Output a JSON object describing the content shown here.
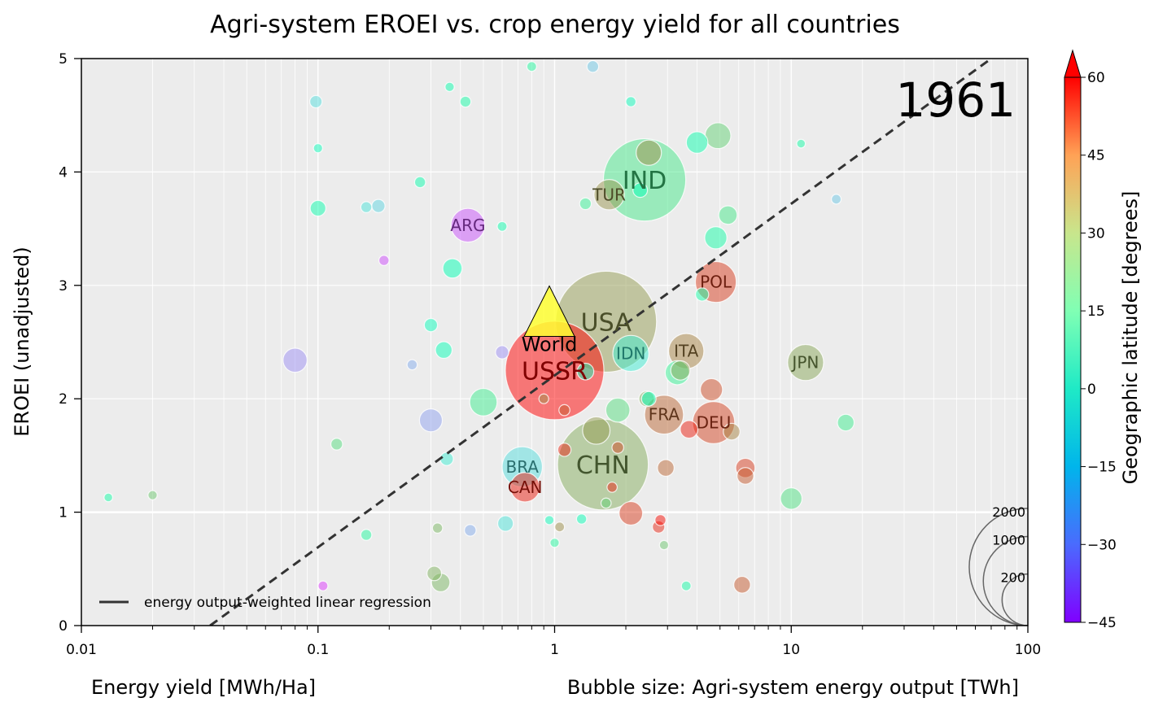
{
  "chart_data": {
    "type": "scatter",
    "title": "Agri-system EROEI vs. crop energy yield for all countries",
    "xlabel": "Energy yield [MWh/Ha]",
    "ylabel": "EROEI (unadjusted)",
    "size_label": "Bubble size: Agri-system energy output [TWh]",
    "year": "1961",
    "x_scale": "log",
    "xlim": [
      0.01,
      100
    ],
    "ylim": [
      0,
      5
    ],
    "x_ticks": [
      "0.01",
      "0.1",
      "1",
      "10",
      "100"
    ],
    "x_tick_values": [
      0.01,
      0.1,
      1,
      10,
      100
    ],
    "y_ticks": [
      "0",
      "1",
      "2",
      "3",
      "4",
      "5"
    ],
    "y_tick_values": [
      0,
      1,
      2,
      3,
      4,
      5
    ],
    "grid": true,
    "background": "#ececec",
    "regression": {
      "label": "energy output-weighted linear regression",
      "points": [
        [
          0.035,
          0
        ],
        [
          70,
          5
        ]
      ]
    },
    "legend_placement": "lower-left",
    "colorbar": {
      "label": "Geographic latitude [degrees]",
      "ticks": [
        "60",
        "45",
        "30",
        "15",
        "0",
        "−15",
        "−30",
        "−45"
      ],
      "tick_values": [
        60,
        45,
        30,
        15,
        0,
        -15,
        -30,
        -45
      ],
      "range": [
        -45,
        60
      ],
      "extend": "max",
      "colormap": "rainbow"
    },
    "size_key": {
      "values": [
        2000,
        1000,
        200
      ],
      "labels": [
        "2000",
        "1000",
        "200"
      ]
    },
    "world": {
      "label": "World",
      "x": 0.95,
      "y": 2.55,
      "marker": "triangle",
      "color": "#ffff33"
    },
    "points": [
      {
        "label": "USSR",
        "x": 1.0,
        "y": 2.25,
        "size": 1900,
        "lat": 60
      },
      {
        "label": "USA",
        "x": 1.65,
        "y": 2.68,
        "size": 2000,
        "lat": 38
      },
      {
        "label": "IND",
        "x": 2.4,
        "y": 3.93,
        "size": 1300,
        "lat": 22
      },
      {
        "label": "CHN",
        "x": 1.6,
        "y": 1.42,
        "size": 1600,
        "lat": 35
      },
      {
        "label": "TUR",
        "x": 1.7,
        "y": 3.8,
        "size": 140,
        "lat": 39
      },
      {
        "label": "ARG",
        "x": 0.43,
        "y": 3.53,
        "size": 180,
        "lat": -34
      },
      {
        "label": "POL",
        "x": 4.8,
        "y": 3.03,
        "size": 280,
        "lat": 52
      },
      {
        "label": "IDN",
        "x": 2.1,
        "y": 2.4,
        "size": 210,
        "lat": -5
      },
      {
        "label": "ITA",
        "x": 3.6,
        "y": 2.42,
        "size": 200,
        "lat": 42
      },
      {
        "label": "JPN",
        "x": 11.5,
        "y": 2.32,
        "size": 210,
        "lat": 36
      },
      {
        "label": "FRA",
        "x": 2.9,
        "y": 1.86,
        "size": 250,
        "lat": 46
      },
      {
        "label": "DEU",
        "x": 4.7,
        "y": 1.79,
        "size": 300,
        "lat": 51
      },
      {
        "label": "BRA",
        "x": 0.73,
        "y": 1.4,
        "size": 270,
        "lat": -10
      },
      {
        "label": "CAN",
        "x": 0.75,
        "y": 1.22,
        "size": 130,
        "lat": 56
      },
      {
        "x": 2.5,
        "y": 4.17,
        "size": 90,
        "lat": 40
      },
      {
        "x": 4.9,
        "y": 4.32,
        "size": 95,
        "lat": 28
      },
      {
        "x": 4.0,
        "y": 4.26,
        "size": 60,
        "lat": 10
      },
      {
        "x": 5.4,
        "y": 3.62,
        "size": 40,
        "lat": 22
      },
      {
        "x": 4.8,
        "y": 3.42,
        "size": 65,
        "lat": 12
      },
      {
        "x": 0.37,
        "y": 3.15,
        "size": 45,
        "lat": 8
      },
      {
        "x": 0.08,
        "y": 2.34,
        "size": 80,
        "lat": -25
      },
      {
        "x": 0.5,
        "y": 1.97,
        "size": 110,
        "lat": 20
      },
      {
        "x": 0.3,
        "y": 1.81,
        "size": 70,
        "lat": -22
      },
      {
        "x": 1.5,
        "y": 1.72,
        "size": 110,
        "lat": 38
      },
      {
        "x": 1.85,
        "y": 1.9,
        "size": 80,
        "lat": 25
      },
      {
        "x": 3.3,
        "y": 2.23,
        "size": 80,
        "lat": 18
      },
      {
        "x": 3.4,
        "y": 2.25,
        "size": 45,
        "lat": 36
      },
      {
        "x": 4.6,
        "y": 2.08,
        "size": 65,
        "lat": 50
      },
      {
        "x": 3.7,
        "y": 1.73,
        "size": 35,
        "lat": 56
      },
      {
        "x": 5.6,
        "y": 1.71,
        "size": 30,
        "lat": 42
      },
      {
        "x": 6.4,
        "y": 1.39,
        "size": 45,
        "lat": 52
      },
      {
        "x": 6.4,
        "y": 1.32,
        "size": 30,
        "lat": 48
      },
      {
        "x": 2.1,
        "y": 0.99,
        "size": 75,
        "lat": 52
      },
      {
        "x": 2.95,
        "y": 1.39,
        "size": 30,
        "lat": 46
      },
      {
        "x": 10.0,
        "y": 1.12,
        "size": 60,
        "lat": 24
      },
      {
        "x": 17.0,
        "y": 1.79,
        "size": 30,
        "lat": 20
      },
      {
        "x": 6.2,
        "y": 0.36,
        "size": 30,
        "lat": 48
      },
      {
        "x": 0.33,
        "y": 0.38,
        "size": 40,
        "lat": 33
      },
      {
        "x": 0.31,
        "y": 0.46,
        "size": 20,
        "lat": 34
      },
      {
        "x": 0.62,
        "y": 0.9,
        "size": 25,
        "lat": -8
      },
      {
        "x": 0.44,
        "y": 0.84,
        "size": 10,
        "lat": -20
      },
      {
        "x": 0.34,
        "y": 2.43,
        "size": 30,
        "lat": 6
      },
      {
        "x": 0.3,
        "y": 2.65,
        "size": 15,
        "lat": 5
      },
      {
        "x": 0.18,
        "y": 3.7,
        "size": 15,
        "lat": -12
      },
      {
        "x": 0.1,
        "y": 3.68,
        "size": 25,
        "lat": 10
      },
      {
        "x": 0.098,
        "y": 4.62,
        "size": 12,
        "lat": -10
      },
      {
        "x": 0.6,
        "y": 2.41,
        "size": 15,
        "lat": -25
      },
      {
        "x": 0.35,
        "y": 1.47,
        "size": 15,
        "lat": -5
      },
      {
        "x": 0.12,
        "y": 1.6,
        "size": 10,
        "lat": 25
      },
      {
        "x": 1.45,
        "y": 4.93,
        "size": 10,
        "lat": -15
      },
      {
        "x": 0.16,
        "y": 3.69,
        "size": 8,
        "lat": -8
      },
      {
        "x": 0.27,
        "y": 3.91,
        "size": 8,
        "lat": 10
      },
      {
        "x": 0.42,
        "y": 4.62,
        "size": 8,
        "lat": 12
      },
      {
        "x": 2.1,
        "y": 4.62,
        "size": 6,
        "lat": 5
      },
      {
        "x": 0.19,
        "y": 3.22,
        "size": 6,
        "lat": -35
      },
      {
        "x": 0.25,
        "y": 2.3,
        "size": 6,
        "lat": -20
      },
      {
        "x": 1.35,
        "y": 2.24,
        "size": 30,
        "lat": 5
      },
      {
        "x": 2.45,
        "y": 2.0,
        "size": 25,
        "lat": 35
      },
      {
        "x": 2.5,
        "y": 2.0,
        "size": 20,
        "lat": 8
      },
      {
        "x": 4.2,
        "y": 2.92,
        "size": 15,
        "lat": 12
      },
      {
        "x": 2.3,
        "y": 3.84,
        "size": 20,
        "lat": 6
      },
      {
        "x": 1.35,
        "y": 3.72,
        "size": 10,
        "lat": 18
      },
      {
        "x": 1.1,
        "y": 1.55,
        "size": 15,
        "lat": 55
      },
      {
        "x": 1.85,
        "y": 1.57,
        "size": 10,
        "lat": 50
      },
      {
        "x": 1.75,
        "y": 1.22,
        "size": 6,
        "lat": 55
      },
      {
        "x": 2.75,
        "y": 0.87,
        "size": 12,
        "lat": 55
      },
      {
        "x": 2.8,
        "y": 0.93,
        "size": 8,
        "lat": 58
      },
      {
        "x": 0.16,
        "y": 0.8,
        "size": 8,
        "lat": 15
      },
      {
        "x": 0.32,
        "y": 0.86,
        "size": 6,
        "lat": 33
      },
      {
        "x": 1.3,
        "y": 0.94,
        "size": 6,
        "lat": 6
      },
      {
        "x": 1.05,
        "y": 0.87,
        "size": 5,
        "lat": 40
      },
      {
        "x": 1.65,
        "y": 1.08,
        "size": 6,
        "lat": 28
      },
      {
        "x": 0.105,
        "y": 0.35,
        "size": 5,
        "lat": -38
      },
      {
        "x": 0.02,
        "y": 1.15,
        "size": 4,
        "lat": 30
      },
      {
        "x": 3.6,
        "y": 0.35,
        "size": 5,
        "lat": 12
      },
      {
        "x": 2.9,
        "y": 0.71,
        "size": 4,
        "lat": 30
      },
      {
        "x": 15.5,
        "y": 3.76,
        "size": 5,
        "lat": -15
      },
      {
        "x": 0.1,
        "y": 4.21,
        "size": 4,
        "lat": 5
      },
      {
        "x": 0.36,
        "y": 4.75,
        "size": 4,
        "lat": 10
      },
      {
        "x": 0.8,
        "y": 4.93,
        "size": 5,
        "lat": 15
      },
      {
        "x": 1.1,
        "y": 1.9,
        "size": 8,
        "lat": 48
      },
      {
        "x": 0.6,
        "y": 3.52,
        "size": 5,
        "lat": 10
      },
      {
        "x": 0.9,
        "y": 2.0,
        "size": 5,
        "lat": 40
      },
      {
        "x": 1.0,
        "y": 0.73,
        "size": 4,
        "lat": 15
      },
      {
        "x": 0.95,
        "y": 0.93,
        "size": 4,
        "lat": 5
      },
      {
        "x": 0.013,
        "y": 1.13,
        "size": 3,
        "lat": 12
      },
      {
        "x": 11.0,
        "y": 4.25,
        "size": 3,
        "lat": 12
      }
    ]
  }
}
